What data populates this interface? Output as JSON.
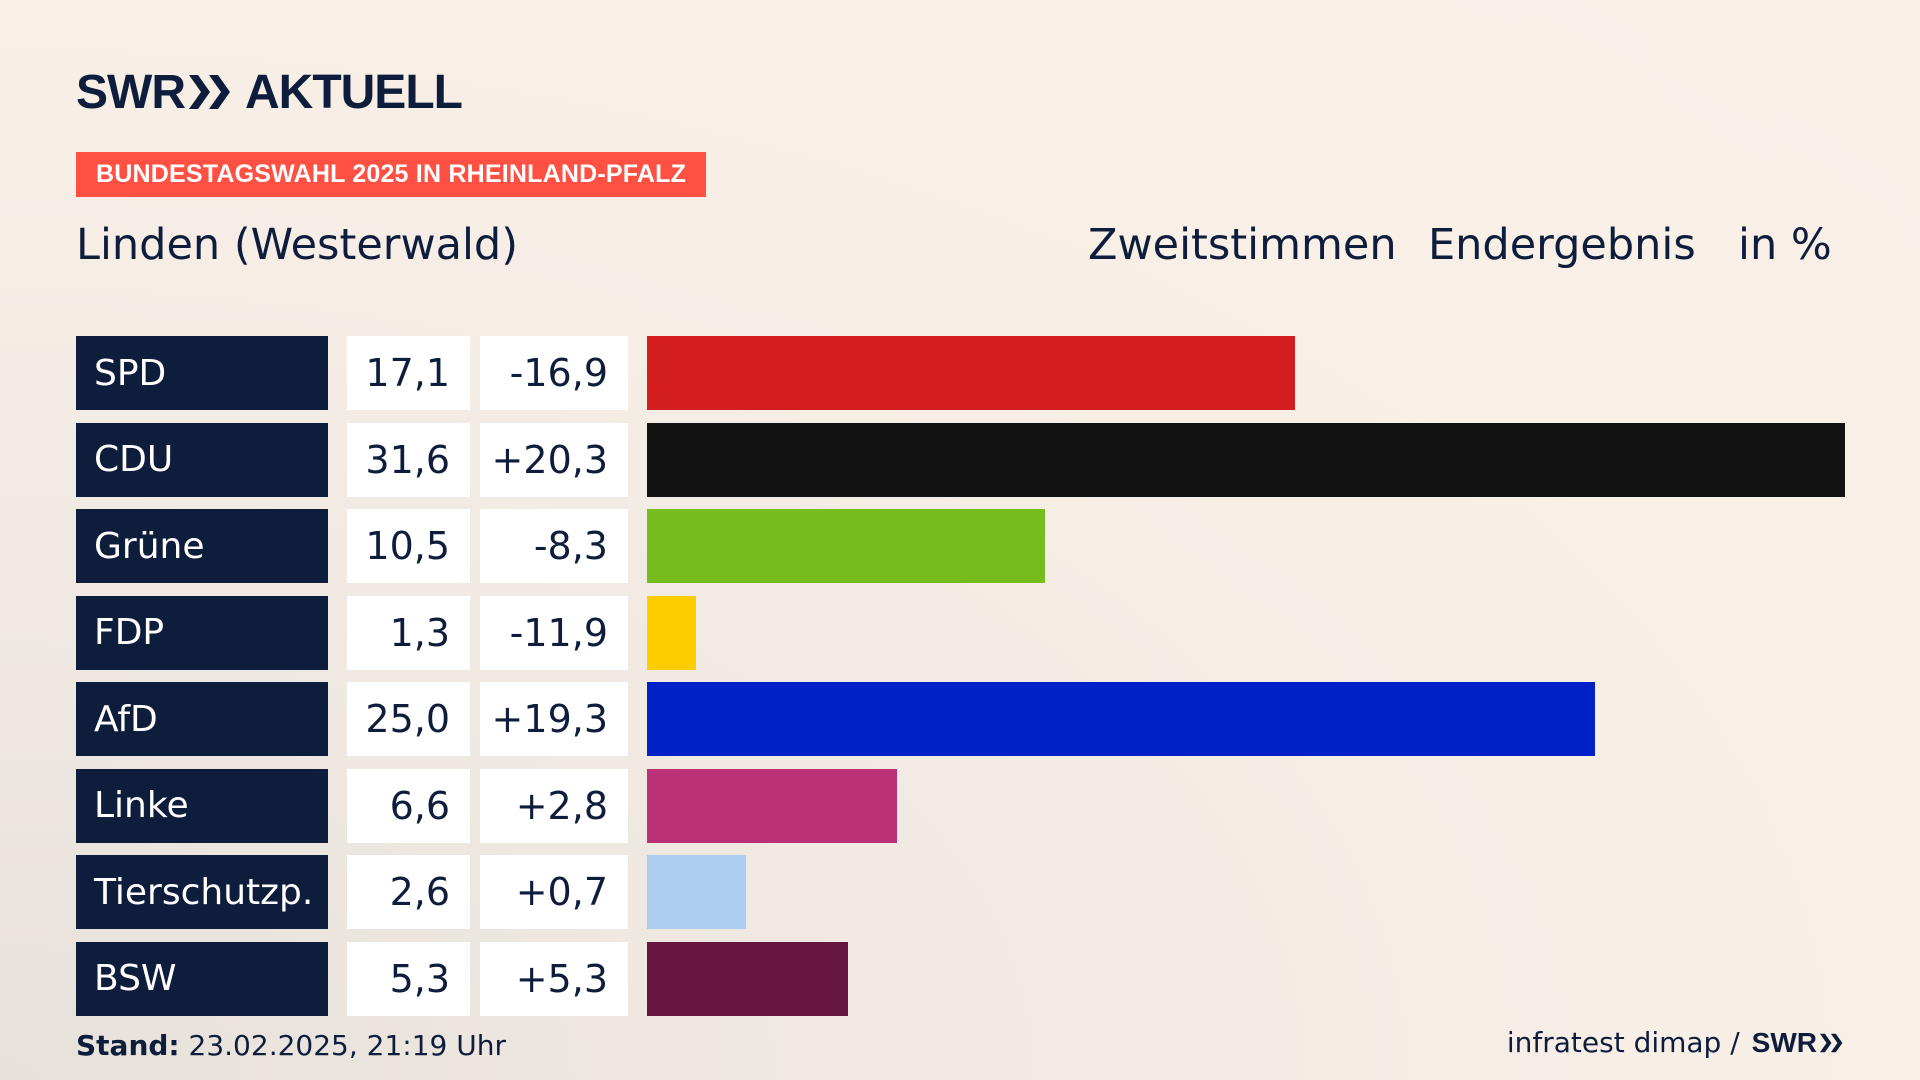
{
  "brand": {
    "name": "SWR",
    "section": "AKTUELL"
  },
  "tag": "BUNDESTAGSWAHL 2025 IN RHEINLAND-PFALZ",
  "region": "Linden (Westerwald)",
  "header": {
    "vote_type": "Zweitstimmen",
    "status": "Endergebnis",
    "unit": "in %"
  },
  "footer": {
    "stand_label": "Stand:",
    "stand_value": "23.02.2025, 21:19 Uhr",
    "source": "infratest dimap /",
    "source_brand": "SWR"
  },
  "chart_data": {
    "type": "bar",
    "orientation": "horizontal",
    "categories": [
      "SPD",
      "CDU",
      "Grüne",
      "FDP",
      "AfD",
      "Linke",
      "Tierschutzp.",
      "BSW"
    ],
    "values": [
      17.1,
      31.6,
      10.5,
      1.3,
      25.0,
      6.6,
      2.6,
      5.3
    ],
    "value_labels": [
      "17,1",
      "31,6",
      "10,5",
      "1,3",
      "25,0",
      "6,6",
      "2,6",
      "5,3"
    ],
    "change_labels": [
      "-16,9",
      "+20,3",
      "-8,3",
      "-11,9",
      "+19,3",
      "+2,8",
      "+0,7",
      "+5,3"
    ],
    "colors": [
      "#d51e20",
      "#121212",
      "#77bc1e",
      "#ffcc00",
      "#0021c7",
      "#bb3077",
      "#aecbf0",
      "#67173f"
    ],
    "xlim": [
      0,
      31.6
    ],
    "grid": false,
    "legend": "none"
  }
}
